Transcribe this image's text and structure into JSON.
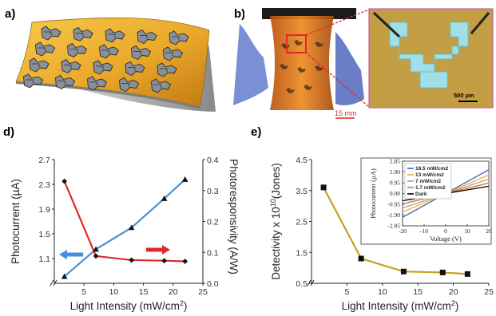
{
  "panels": {
    "a": {
      "label": "a)"
    },
    "b": {
      "label": "b)",
      "scale_bar_main": "15 mm",
      "scale_bar_inset": "500 µm"
    },
    "d": {
      "label": "d)"
    },
    "e": {
      "label": "e)"
    }
  },
  "colors": {
    "photocurrent": "#4a90d9",
    "responsivity": "#e0282b",
    "detectivity": "#c8a020",
    "photoresponse_series": [
      "#3a60b8",
      "#f0b020",
      "#a0a0a0",
      "#e06a20",
      "#000000"
    ]
  },
  "chart_data": [
    {
      "id": "d",
      "type": "line",
      "xlabel": "Light Intensity (mW/cm2)",
      "ylabel_left": "Photocurrent (µA)",
      "ylabel_right": "Photoresponsivity (A/W)",
      "xlim": [
        0,
        25
      ],
      "ylim_left": [
        0.7,
        2.7
      ],
      "ylim_right": [
        0,
        0.4
      ],
      "xticks": [
        5,
        10,
        15,
        20,
        25
      ],
      "yticks_left": [
        "1.1",
        "1.5",
        "1.9",
        "2.3",
        "2.7"
      ],
      "yticks_right": [
        "0.0",
        "0.1",
        "0.2",
        "0.3",
        "0.4"
      ],
      "series": [
        {
          "axis": "left",
          "marker": "triangle",
          "x": [
            1.7,
            7,
            13,
            18.5,
            22
          ],
          "y": [
            0.81,
            1.25,
            1.6,
            2.07,
            2.38
          ]
        },
        {
          "axis": "right",
          "marker": "diamond",
          "x": [
            1.7,
            7,
            13,
            18.5,
            22
          ],
          "y": [
            0.33,
            0.088,
            0.075,
            0.073,
            0.071
          ]
        }
      ]
    },
    {
      "id": "e",
      "type": "line",
      "xlabel": "Light Intensity (mW/cm2)",
      "ylabel": "Detectivity x 1010(Jones)",
      "xlim": [
        0,
        25
      ],
      "ylim": [
        0.5,
        4.5
      ],
      "xticks": [
        5,
        10,
        15,
        20,
        25
      ],
      "yticks": [
        "0.5",
        "1.5",
        "2.5",
        "3.5",
        "4.5"
      ],
      "x": [
        1.7,
        7,
        13,
        18.5,
        22
      ],
      "y": [
        3.6,
        1.3,
        0.88,
        0.85,
        0.8
      ]
    },
    {
      "id": "e-inset",
      "type": "line",
      "xlabel": "Voltage (V)",
      "ylabel": "Photocurrent (µA)",
      "xlim": [
        -20,
        20
      ],
      "ylim": [
        -2.85,
        2.85
      ],
      "xticks": [
        -20,
        -10,
        0,
        10,
        20
      ],
      "yticks": [
        "-2.85",
        "-1.90",
        "-0.95",
        "0.00",
        "0.95",
        "1.90",
        "2.85"
      ],
      "series": [
        {
          "name": "18.5 mW/cm2",
          "slope": 0.105
        },
        {
          "name": "13 mW/cm2",
          "slope": 0.082
        },
        {
          "name": "7 mW/cm2",
          "slope": 0.064
        },
        {
          "name": "1.7 mW/cm2",
          "slope": 0.046
        },
        {
          "name": "Dark",
          "slope": 0.032
        }
      ]
    }
  ]
}
